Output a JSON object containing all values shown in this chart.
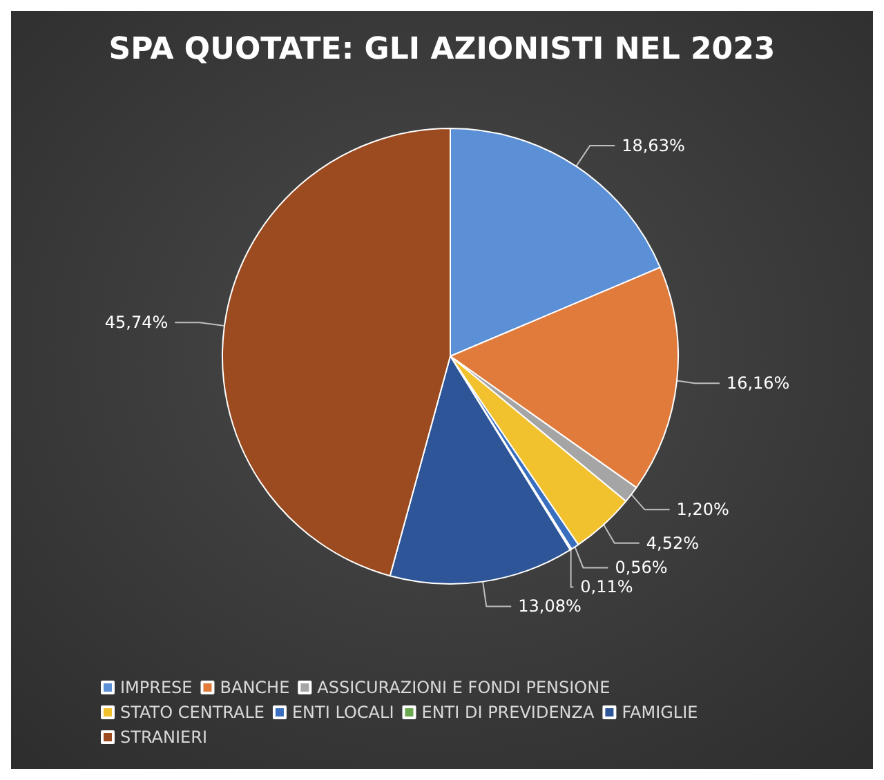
{
  "chart_data": {
    "type": "pie",
    "title": "SPA QUOTATE: GLI AZIONISTI NEL 2023",
    "categories": [
      "IMPRESE",
      "BANCHE",
      "ASSICURAZIONI E FONDI PENSIONE",
      "STATO CENTRALE",
      "ENTI LOCALI",
      "ENTI DI PREVIDENZA",
      "FAMIGLIE",
      "STRANIERI"
    ],
    "values": [
      18.63,
      16.16,
      1.2,
      4.52,
      0.56,
      0.11,
      13.08,
      45.74
    ],
    "value_labels": [
      "18,63%",
      "16,16%",
      "1,20%",
      "4,52%",
      "0,56%",
      "0,11%",
      "13,08%",
      "45,74%"
    ],
    "colors": [
      "#5b8fd6",
      "#e07b3c",
      "#a5a5a5",
      "#f2c12e",
      "#3a6fbf",
      "#6aa84f",
      "#2e5597",
      "#9c4a1f"
    ],
    "legend": "bottom"
  }
}
